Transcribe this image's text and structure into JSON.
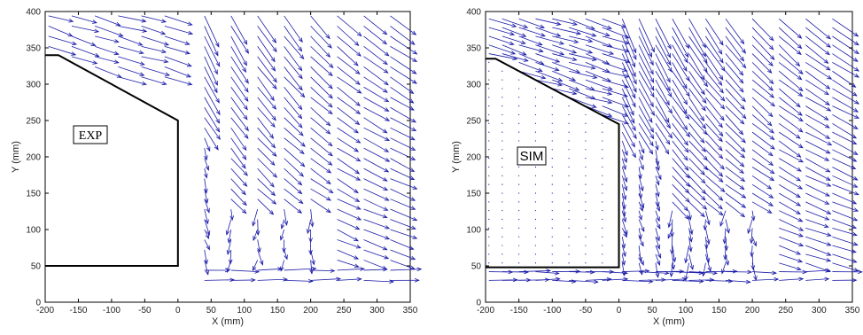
{
  "chart_data": [
    {
      "type": "quiver",
      "panel_label": "EXP",
      "xlabel": "X (mm)",
      "ylabel": "Y (mm)",
      "xlim": [
        -200,
        350
      ],
      "ylim": [
        0,
        400
      ],
      "xticks": [
        -200,
        -150,
        -100,
        -50,
        0,
        50,
        100,
        150,
        200,
        250,
        300,
        350
      ],
      "yticks": [
        0,
        50,
        100,
        150,
        200,
        250,
        300,
        350,
        400
      ],
      "arrow_color": "#1a1aa8",
      "geometry_outline": [
        [
          -200,
          340
        ],
        [
          -180,
          340
        ],
        [
          0,
          250
        ],
        [
          0,
          50
        ],
        [
          -200,
          50
        ]
      ],
      "field": {
        "columns_x": [
          -195,
          -160,
          -125,
          -90,
          -55,
          -20,
          40,
          80,
          120,
          160,
          200,
          240,
          280,
          320
        ],
        "note_region": "arrows mainly to the right, steep downward flow behind the step near x=0..100, recirculation near y=50..120"
      }
    },
    {
      "type": "quiver",
      "panel_label": "SIM",
      "xlabel": "X (mm)",
      "ylabel": "Y (mm)",
      "xlim": [
        -200,
        350
      ],
      "ylim": [
        0,
        400
      ],
      "xticks": [
        -200,
        -150,
        -100,
        -50,
        0,
        50,
        100,
        150,
        200,
        250,
        300,
        350
      ],
      "yticks": [
        0,
        50,
        100,
        150,
        200,
        250,
        300,
        350,
        400
      ],
      "arrow_color": "#1a1aa8",
      "geometry_outline": [
        [
          -200,
          335
        ],
        [
          -185,
          335
        ],
        [
          0,
          245
        ],
        [
          0,
          48
        ],
        [
          -200,
          48
        ]
      ],
      "field": {
        "columns_x": [
          -195,
          -175,
          -150,
          -125,
          -100,
          -75,
          -50,
          -25,
          5,
          30,
          55,
          80,
          105,
          130,
          160,
          200,
          240,
          280,
          320
        ],
        "note_region": "dense rightward jet near floor (y<45), downward sweeping flow after the step"
      }
    }
  ],
  "colors": {
    "arrow": "#1a1aa8",
    "geometry": "#000000",
    "axis": "#000000"
  }
}
